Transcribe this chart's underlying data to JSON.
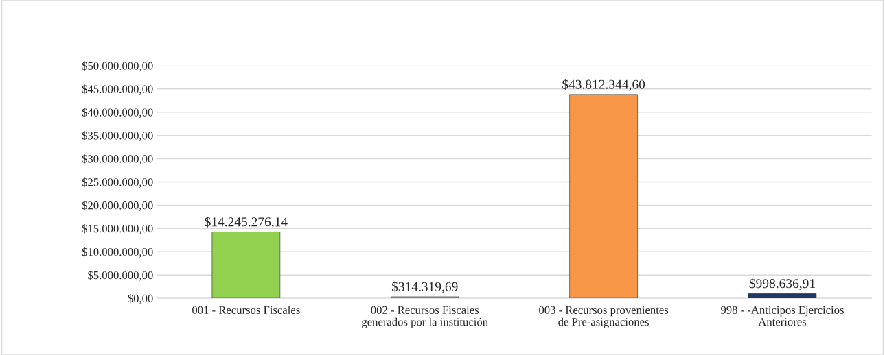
{
  "chart_data": {
    "type": "bar",
    "categories": [
      "001 - Recursos Fiscales",
      "002 - Recursos Fiscales\ngenerados por la institución",
      "003 - Recursos provenientes\nde Pre-asignaciones",
      "998 - -Anticipos Ejercicios\nAnteriores"
    ],
    "values": [
      14245276.14,
      314319.69,
      43812344.6,
      998636.91
    ],
    "colors": [
      "#92d050",
      "#4bacc6",
      "#f79646",
      "#1f3864"
    ],
    "value_labels": [
      "$14.245.276,14",
      "$314.319,69",
      "$43.812.344,60",
      "$998.636,91"
    ],
    "ylim": [
      0,
      50000000
    ],
    "yticks": [
      {
        "value": 0,
        "label": "$0,00"
      },
      {
        "value": 5000000,
        "label": "$5.000.000,00"
      },
      {
        "value": 10000000,
        "label": "$10.000.000,00"
      },
      {
        "value": 15000000,
        "label": "$15.000.000,00"
      },
      {
        "value": 20000000,
        "label": "$20.000.000,00"
      },
      {
        "value": 25000000,
        "label": "$25.000.000,00"
      },
      {
        "value": 30000000,
        "label": "$30.000.000,00"
      },
      {
        "value": 35000000,
        "label": "$35.000.000,00"
      },
      {
        "value": 40000000,
        "label": "$40.000.000,00"
      },
      {
        "value": 45000000,
        "label": "$45.000.000,00"
      },
      {
        "value": 50000000,
        "label": "$50.000.000,00"
      }
    ],
    "grid": "y"
  }
}
